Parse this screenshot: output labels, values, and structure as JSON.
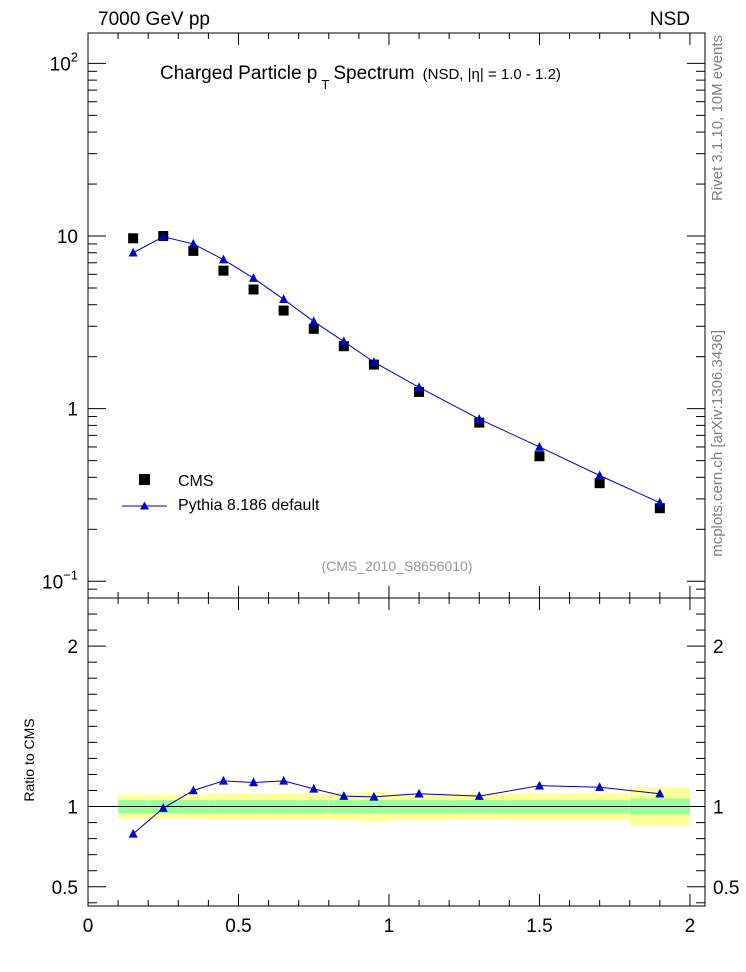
{
  "header": {
    "left": "7000 GeV pp",
    "right": "NSD"
  },
  "side_labels": {
    "top": "Rivet 3.1.10, 10M events",
    "bottom": "mcplots.cern.ch [arXiv:1306.3436]"
  },
  "chart_data": {
    "type": "scatter",
    "title_main": "Charged Particle p",
    "title_sub": "T",
    "title_rest": "Spectrum",
    "title_note": "(NSD, |η| = 1.0 - 1.2)",
    "analysis_id": "(CMS_2010_S8656010)",
    "x": [
      0.15,
      0.25,
      0.35,
      0.45,
      0.55,
      0.65,
      0.75,
      0.85,
      0.95,
      1.1,
      1.3,
      1.5,
      1.7,
      1.9
    ],
    "xlim": [
      0,
      2.05
    ],
    "x_ticks": [
      "0",
      "0.5",
      "1",
      "1.5",
      "2"
    ],
    "main": {
      "yscale": "log",
      "ylim": [
        0.08,
        150
      ],
      "y_tick_labels": {
        "1e2": "10",
        "1e2_exp": "2",
        "10": "10",
        "1": "1",
        "1e-1": "10",
        "1e-1_exp": "−1"
      },
      "series": [
        {
          "name": "CMS",
          "marker": "square",
          "color": "#000000",
          "values": [
            9.7,
            10.0,
            8.2,
            6.3,
            4.9,
            3.7,
            2.9,
            2.3,
            1.8,
            1.25,
            0.83,
            0.53,
            0.37,
            0.265
          ]
        },
        {
          "name": "Pythia 8.186 default",
          "marker": "triangle",
          "color": "#0000cc",
          "values": [
            8.0,
            9.9,
            9.0,
            7.3,
            5.7,
            4.3,
            3.2,
            2.45,
            1.86,
            1.33,
            0.87,
            0.6,
            0.41,
            0.285
          ]
        }
      ]
    },
    "ratio": {
      "ylabel": "Ratio to CMS",
      "ylim": [
        0.38,
        2.3
      ],
      "y_ticks": [
        "0.5",
        "1",
        "2"
      ],
      "bins": [
        [
          0.1,
          0.2
        ],
        [
          0.2,
          0.3
        ],
        [
          0.3,
          0.4
        ],
        [
          0.4,
          0.5
        ],
        [
          0.5,
          0.6
        ],
        [
          0.6,
          0.7
        ],
        [
          0.7,
          0.8
        ],
        [
          0.8,
          0.9
        ],
        [
          0.9,
          1.0
        ],
        [
          1.0,
          1.2
        ],
        [
          1.2,
          1.4
        ],
        [
          1.4,
          1.6
        ],
        [
          1.6,
          1.8
        ],
        [
          1.8,
          2.0
        ]
      ],
      "band_stat": [
        0.04,
        0.04,
        0.04,
        0.04,
        0.04,
        0.04,
        0.04,
        0.04,
        0.04,
        0.04,
        0.04,
        0.04,
        0.04,
        0.05
      ],
      "band_total": [
        0.075,
        0.075,
        0.075,
        0.078,
        0.08,
        0.08,
        0.08,
        0.085,
        0.09,
        0.085,
        0.08,
        0.085,
        0.085,
        0.12
      ],
      "values": [
        0.83,
        0.99,
        1.1,
        1.16,
        1.15,
        1.16,
        1.11,
        1.065,
        1.06,
        1.08,
        1.065,
        1.13,
        1.12,
        1.08
      ]
    }
  }
}
